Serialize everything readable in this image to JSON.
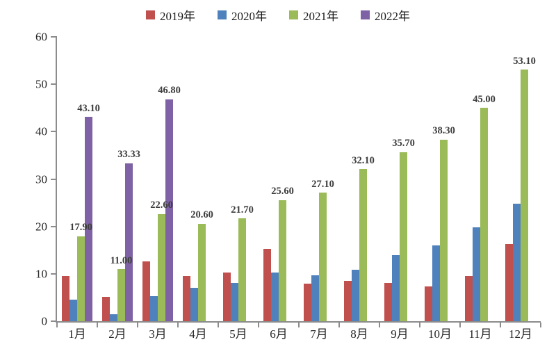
{
  "chart_data": {
    "type": "bar",
    "title": "",
    "xlabel": "",
    "ylabel": "",
    "ylim": [
      0,
      60
    ],
    "yticks": [
      0,
      10,
      20,
      30,
      40,
      50,
      60
    ],
    "ytick_labels": [
      "0",
      "10",
      "20",
      "30",
      "40",
      "50",
      "60"
    ],
    "grid": false,
    "legend_position": "top",
    "categories": [
      "1月",
      "2月",
      "3月",
      "4月",
      "5月",
      "6月",
      "7月",
      "8月",
      "9月",
      "10月",
      "11月",
      "12月"
    ],
    "series": [
      {
        "name": "2019年",
        "color": "#C0504D",
        "values": [
          9.5,
          5.2,
          12.6,
          9.6,
          10.3,
          15.2,
          7.9,
          8.5,
          8.0,
          7.3,
          9.5,
          16.3
        ],
        "label_texts": null
      },
      {
        "name": "2020年",
        "color": "#4F81BD",
        "values": [
          4.6,
          1.4,
          5.3,
          7.1,
          8.1,
          10.3,
          9.7,
          10.9,
          14.0,
          16.0,
          19.8,
          24.8
        ],
        "label_texts": null
      },
      {
        "name": "2021年",
        "color": "#9BBB59",
        "values": [
          17.9,
          11.0,
          22.6,
          20.6,
          21.7,
          25.6,
          27.1,
          32.1,
          35.7,
          38.3,
          45.0,
          53.1
        ],
        "label_texts": [
          "17.90",
          "11.00",
          "22.60",
          "20.60",
          "21.70",
          "25.60",
          "27.10",
          "32.10",
          "35.70",
          "38.30",
          "45.00",
          "53.10"
        ]
      },
      {
        "name": "2022年",
        "color": "#7E62A5",
        "values": [
          43.1,
          33.33,
          46.8,
          null,
          null,
          null,
          null,
          null,
          null,
          null,
          null,
          null
        ],
        "label_texts": [
          "43.10",
          "33.33",
          "46.80",
          null,
          null,
          null,
          null,
          null,
          null,
          null,
          null,
          null
        ]
      }
    ]
  }
}
